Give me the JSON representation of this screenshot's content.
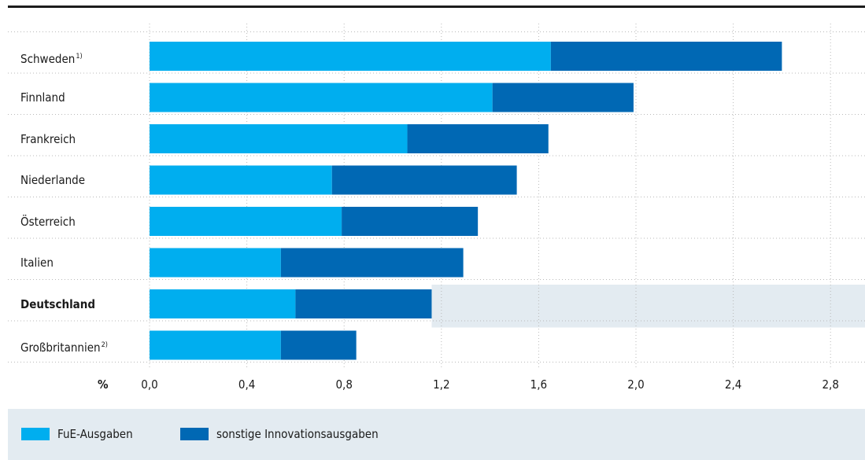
{
  "chart_data": {
    "type": "bar",
    "orientation": "horizontal",
    "stacked": true,
    "categories": [
      {
        "name": "Schweden",
        "note": "1)",
        "highlight": false
      },
      {
        "name": "Finnland",
        "note": "",
        "highlight": false
      },
      {
        "name": "Frankreich",
        "note": "",
        "highlight": false
      },
      {
        "name": "Niederlande",
        "note": "",
        "highlight": false
      },
      {
        "name": "Österreich",
        "note": "",
        "highlight": false
      },
      {
        "name": "Italien",
        "note": "",
        "highlight": false
      },
      {
        "name": "Deutschland",
        "note": "",
        "highlight": true
      },
      {
        "name": "Großbritannien",
        "note": "2)",
        "highlight": false
      }
    ],
    "series": [
      {
        "name": "FuE-Ausgaben",
        "color": "#00aeef",
        "values": [
          1.65,
          1.41,
          1.06,
          0.75,
          0.79,
          0.54,
          0.6,
          0.54
        ]
      },
      {
        "name": "sonstige Innovationsausgaben",
        "color": "#0068b4",
        "values": [
          0.95,
          0.58,
          0.58,
          0.76,
          0.56,
          0.75,
          0.56,
          0.31
        ]
      }
    ],
    "xlim": [
      0,
      2.9
    ],
    "xticks": [
      0.0,
      0.4,
      0.8,
      1.2,
      1.6,
      2.0,
      2.4,
      2.8
    ],
    "tick_labels": [
      "0,0",
      "0,4",
      "0,8",
      "1,2",
      "1,6",
      "2,0",
      "2,4",
      "2,8"
    ],
    "xlabel": "%",
    "grid": true,
    "legend_position": "bottom-left",
    "highlight_row_color": "#e3ebf1"
  }
}
